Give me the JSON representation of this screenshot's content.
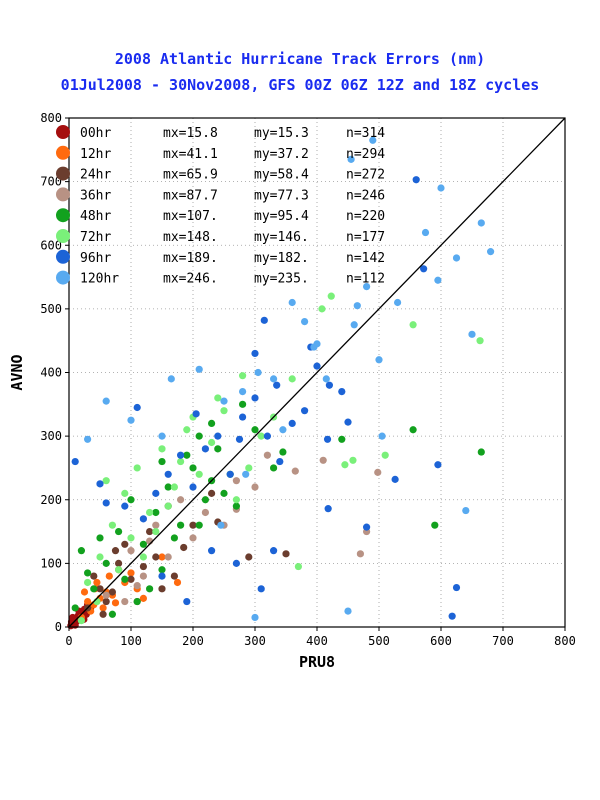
{
  "chart_data": {
    "type": "scatter",
    "title": "2008 Atlantic Hurricane Track Errors (nm)",
    "subtitle": "01Jul2008 - 30Nov2008, GFS 00Z 06Z 12Z and 18Z cycles",
    "xlabel": "PRU8",
    "ylabel": "AVNO",
    "xlim": [
      0,
      800
    ],
    "ylim": [
      0,
      800
    ],
    "xticks": [
      "0",
      "100",
      "200",
      "300",
      "400",
      "500",
      "600",
      "700",
      "800"
    ],
    "yticks": [
      "0",
      "100",
      "200",
      "300",
      "400",
      "500",
      "600",
      "700",
      "800"
    ],
    "grid": true,
    "legend_position": "top-left",
    "reference_line": {
      "x": [
        0,
        800
      ],
      "y": [
        0,
        800
      ]
    },
    "series": [
      {
        "name": "00hr",
        "color": "#a50f0f",
        "stats": {
          "mx": "mx=15.8",
          "my": "my=15.3",
          "n": "n=314"
        },
        "points": [
          [
            3,
            2
          ],
          [
            5,
            4
          ],
          [
            8,
            6
          ],
          [
            10,
            12
          ],
          [
            12,
            9
          ],
          [
            15,
            18
          ],
          [
            18,
            14
          ],
          [
            20,
            22
          ],
          [
            22,
            16
          ],
          [
            25,
            28
          ],
          [
            28,
            20
          ],
          [
            30,
            35
          ],
          [
            14,
            10
          ],
          [
            7,
            11
          ],
          [
            4,
            8
          ],
          [
            35,
            30
          ],
          [
            10,
            3
          ],
          [
            16,
            25
          ],
          [
            24,
            12
          ],
          [
            6,
            15
          ]
        ]
      },
      {
        "name": "12hr",
        "color": "#ff6a0f",
        "stats": {
          "mx": "mx=41.1",
          "my": "my=37.2",
          "n": "n=294"
        },
        "points": [
          [
            20,
            15
          ],
          [
            30,
            40
          ],
          [
            40,
            35
          ],
          [
            50,
            45
          ],
          [
            60,
            55
          ],
          [
            45,
            70
          ],
          [
            70,
            50
          ],
          [
            80,
            90
          ],
          [
            35,
            25
          ],
          [
            55,
            30
          ],
          [
            90,
            70
          ],
          [
            25,
            55
          ],
          [
            65,
            80
          ],
          [
            100,
            85
          ],
          [
            110,
            60
          ],
          [
            120,
            45
          ],
          [
            175,
            70
          ],
          [
            150,
            110
          ],
          [
            42,
            60
          ],
          [
            75,
            38
          ]
        ]
      },
      {
        "name": "24hr",
        "color": "#6b3d2e",
        "stats": {
          "mx": "mx=65.9",
          "my": "my=58.4",
          "n": "n=272"
        },
        "points": [
          [
            30,
            30
          ],
          [
            50,
            60
          ],
          [
            70,
            55
          ],
          [
            80,
            100
          ],
          [
            100,
            75
          ],
          [
            90,
            130
          ],
          [
            120,
            95
          ],
          [
            60,
            40
          ],
          [
            130,
            150
          ],
          [
            140,
            110
          ],
          [
            40,
            80
          ],
          [
            110,
            40
          ],
          [
            200,
            160
          ],
          [
            185,
            125
          ],
          [
            240,
            165
          ],
          [
            230,
            210
          ],
          [
            150,
            60
          ],
          [
            170,
            80
          ],
          [
            290,
            110
          ],
          [
            350,
            115
          ],
          [
            160,
            190
          ],
          [
            75,
            120
          ],
          [
            55,
            20
          ]
        ]
      },
      {
        "name": "36hr",
        "color": "#b89284",
        "stats": {
          "mx": "mx=87.7",
          "my": "my=77.3",
          "n": "n=246"
        },
        "points": [
          [
            60,
            50
          ],
          [
            80,
            90
          ],
          [
            100,
            120
          ],
          [
            120,
            80
          ],
          [
            140,
            160
          ],
          [
            90,
            40
          ],
          [
            160,
            110
          ],
          [
            180,
            200
          ],
          [
            200,
            140
          ],
          [
            220,
            180
          ],
          [
            250,
            160
          ],
          [
            270,
            230
          ],
          [
            320,
            270
          ],
          [
            365,
            245
          ],
          [
            410,
            262
          ],
          [
            470,
            115
          ],
          [
            480,
            150
          ],
          [
            498,
            243
          ],
          [
            270,
            185
          ],
          [
            110,
            65
          ],
          [
            130,
            135
          ],
          [
            300,
            220
          ]
        ]
      },
      {
        "name": "48hr",
        "color": "#12a11e",
        "stats": {
          "mx": "mx=107.",
          "my": "my=95.4",
          "n": "n=220"
        },
        "points": [
          [
            20,
            120
          ],
          [
            40,
            60
          ],
          [
            60,
            100
          ],
          [
            80,
            150
          ],
          [
            100,
            200
          ],
          [
            120,
            130
          ],
          [
            140,
            180
          ],
          [
            160,
            220
          ],
          [
            180,
            160
          ],
          [
            200,
            250
          ],
          [
            220,
            200
          ],
          [
            240,
            280
          ],
          [
            260,
            240
          ],
          [
            280,
            350
          ],
          [
            300,
            310
          ],
          [
            250,
            210
          ],
          [
            150,
            90
          ],
          [
            130,
            60
          ],
          [
            110,
            40
          ],
          [
            70,
            20
          ],
          [
            90,
            75
          ],
          [
            170,
            140
          ],
          [
            190,
            270
          ],
          [
            210,
            300
          ],
          [
            230,
            320
          ],
          [
            10,
            30
          ],
          [
            30,
            85
          ],
          [
            50,
            140
          ],
          [
            345,
            275
          ],
          [
            440,
            295
          ],
          [
            555,
            310
          ],
          [
            590,
            160
          ],
          [
            665,
            275
          ],
          [
            210,
            160
          ],
          [
            330,
            250
          ],
          [
            150,
            260
          ],
          [
            270,
            190
          ],
          [
            230,
            230
          ]
        ]
      },
      {
        "name": "72hr",
        "color": "#7af07a",
        "stats": {
          "mx": "mx=148.",
          "my": "my=146.",
          "n": "n=177"
        },
        "points": [
          [
            30,
            70
          ],
          [
            50,
            110
          ],
          [
            70,
            160
          ],
          [
            90,
            210
          ],
          [
            110,
            250
          ],
          [
            130,
            180
          ],
          [
            150,
            280
          ],
          [
            170,
            220
          ],
          [
            190,
            310
          ],
          [
            210,
            240
          ],
          [
            230,
            290
          ],
          [
            250,
            340
          ],
          [
            270,
            200
          ],
          [
            290,
            250
          ],
          [
            310,
            300
          ],
          [
            330,
            330
          ],
          [
            80,
            90
          ],
          [
            100,
            140
          ],
          [
            120,
            110
          ],
          [
            140,
            150
          ],
          [
            160,
            190
          ],
          [
            180,
            260
          ],
          [
            200,
            330
          ],
          [
            240,
            360
          ],
          [
            60,
            230
          ],
          [
            45,
            40
          ],
          [
            20,
            10
          ],
          [
            370,
            95
          ],
          [
            445,
            255
          ],
          [
            458,
            262
          ],
          [
            510,
            270
          ],
          [
            555,
            475
          ],
          [
            663,
            450
          ],
          [
            408,
            500
          ],
          [
            423,
            520
          ],
          [
            280,
            395
          ],
          [
            360,
            390
          ]
        ]
      },
      {
        "name": "96hr",
        "color": "#1c63d6",
        "stats": {
          "mx": "mx=189.",
          "my": "my=182.",
          "n": "n=142"
        },
        "points": [
          [
            10,
            260
          ],
          [
            50,
            225
          ],
          [
            60,
            195
          ],
          [
            90,
            190
          ],
          [
            120,
            170
          ],
          [
            140,
            210
          ],
          [
            160,
            240
          ],
          [
            180,
            270
          ],
          [
            200,
            220
          ],
          [
            220,
            280
          ],
          [
            240,
            300
          ],
          [
            260,
            240
          ],
          [
            280,
            330
          ],
          [
            300,
            360
          ],
          [
            320,
            300
          ],
          [
            340,
            260
          ],
          [
            360,
            320
          ],
          [
            380,
            340
          ],
          [
            400,
            410
          ],
          [
            420,
            380
          ],
          [
            150,
            80
          ],
          [
            190,
            40
          ],
          [
            230,
            120
          ],
          [
            270,
            100
          ],
          [
            310,
            60
          ],
          [
            330,
            120
          ],
          [
            110,
            345
          ],
          [
            205,
            335
          ],
          [
            275,
            295
          ],
          [
            300,
            430
          ],
          [
            315,
            482
          ],
          [
            335,
            380
          ],
          [
            390,
            440
          ],
          [
            417,
            295
          ],
          [
            418,
            186
          ],
          [
            440,
            370
          ],
          [
            450,
            322
          ],
          [
            480,
            157
          ],
          [
            526,
            232
          ],
          [
            560,
            703
          ],
          [
            572,
            563
          ],
          [
            618,
            17
          ],
          [
            625,
            62
          ],
          [
            595,
            255
          ]
        ]
      },
      {
        "name": "120hr",
        "color": "#58aaf0",
        "stats": {
          "mx": "mx=246.",
          "my": "my=235.",
          "n": "n=112"
        },
        "points": [
          [
            30,
            295
          ],
          [
            60,
            355
          ],
          [
            100,
            325
          ],
          [
            150,
            300
          ],
          [
            165,
            390
          ],
          [
            210,
            405
          ],
          [
            250,
            355
          ],
          [
            280,
            370
          ],
          [
            305,
            400
          ],
          [
            330,
            390
          ],
          [
            345,
            310
          ],
          [
            395,
            440
          ],
          [
            400,
            445
          ],
          [
            450,
            25
          ],
          [
            460,
            475
          ],
          [
            465,
            505
          ],
          [
            480,
            535
          ],
          [
            500,
            420
          ],
          [
            505,
            300
          ],
          [
            530,
            510
          ],
          [
            575,
            620
          ],
          [
            595,
            545
          ],
          [
            625,
            580
          ],
          [
            640,
            183
          ],
          [
            650,
            460
          ],
          [
            665,
            635
          ],
          [
            680,
            590
          ],
          [
            455,
            735
          ],
          [
            490,
            765
          ],
          [
            600,
            690
          ],
          [
            415,
            390
          ],
          [
            360,
            510
          ],
          [
            380,
            480
          ],
          [
            300,
            15
          ],
          [
            245,
            160
          ],
          [
            285,
            240
          ]
        ]
      }
    ]
  }
}
